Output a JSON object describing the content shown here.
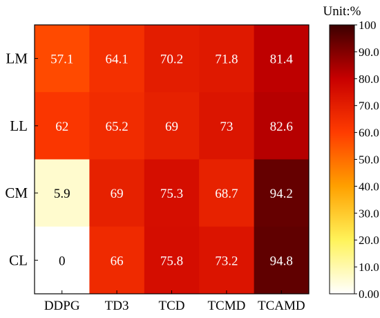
{
  "chart_data": {
    "type": "heatmap",
    "unit_label": "Unit:%",
    "rows": [
      "LM",
      "LL",
      "CM",
      "CL"
    ],
    "columns": [
      "DDPG",
      "TD3",
      "TCD",
      "TCMD",
      "TCAMD"
    ],
    "values": [
      [
        57.1,
        64.1,
        70.2,
        71.8,
        81.4
      ],
      [
        62,
        65.2,
        69,
        73,
        82.6
      ],
      [
        5.9,
        69,
        75.3,
        68.7,
        94.2
      ],
      [
        0,
        66,
        75.8,
        73.2,
        94.8
      ]
    ],
    "value_labels": [
      [
        "57.1",
        "64.1",
        "70.2",
        "71.8",
        "81.4"
      ],
      [
        "62",
        "65.2",
        "69",
        "73",
        "82.6"
      ],
      [
        "5.9",
        "69",
        "75.3",
        "68.7",
        "94.2"
      ],
      [
        "0",
        "66",
        "75.8",
        "73.2",
        "94.8"
      ]
    ],
    "colorbar": {
      "range": [
        0,
        100
      ],
      "colormap": "hot_r",
      "ticks": [
        0,
        10,
        20,
        30,
        40,
        50,
        60,
        70,
        80,
        90,
        100
      ],
      "tick_labels": [
        "0.00",
        "10.0",
        "20.0",
        "30.0",
        "40.0",
        "50.0",
        "60.0",
        "70.0",
        "80.0",
        "90.0",
        "100"
      ]
    }
  }
}
